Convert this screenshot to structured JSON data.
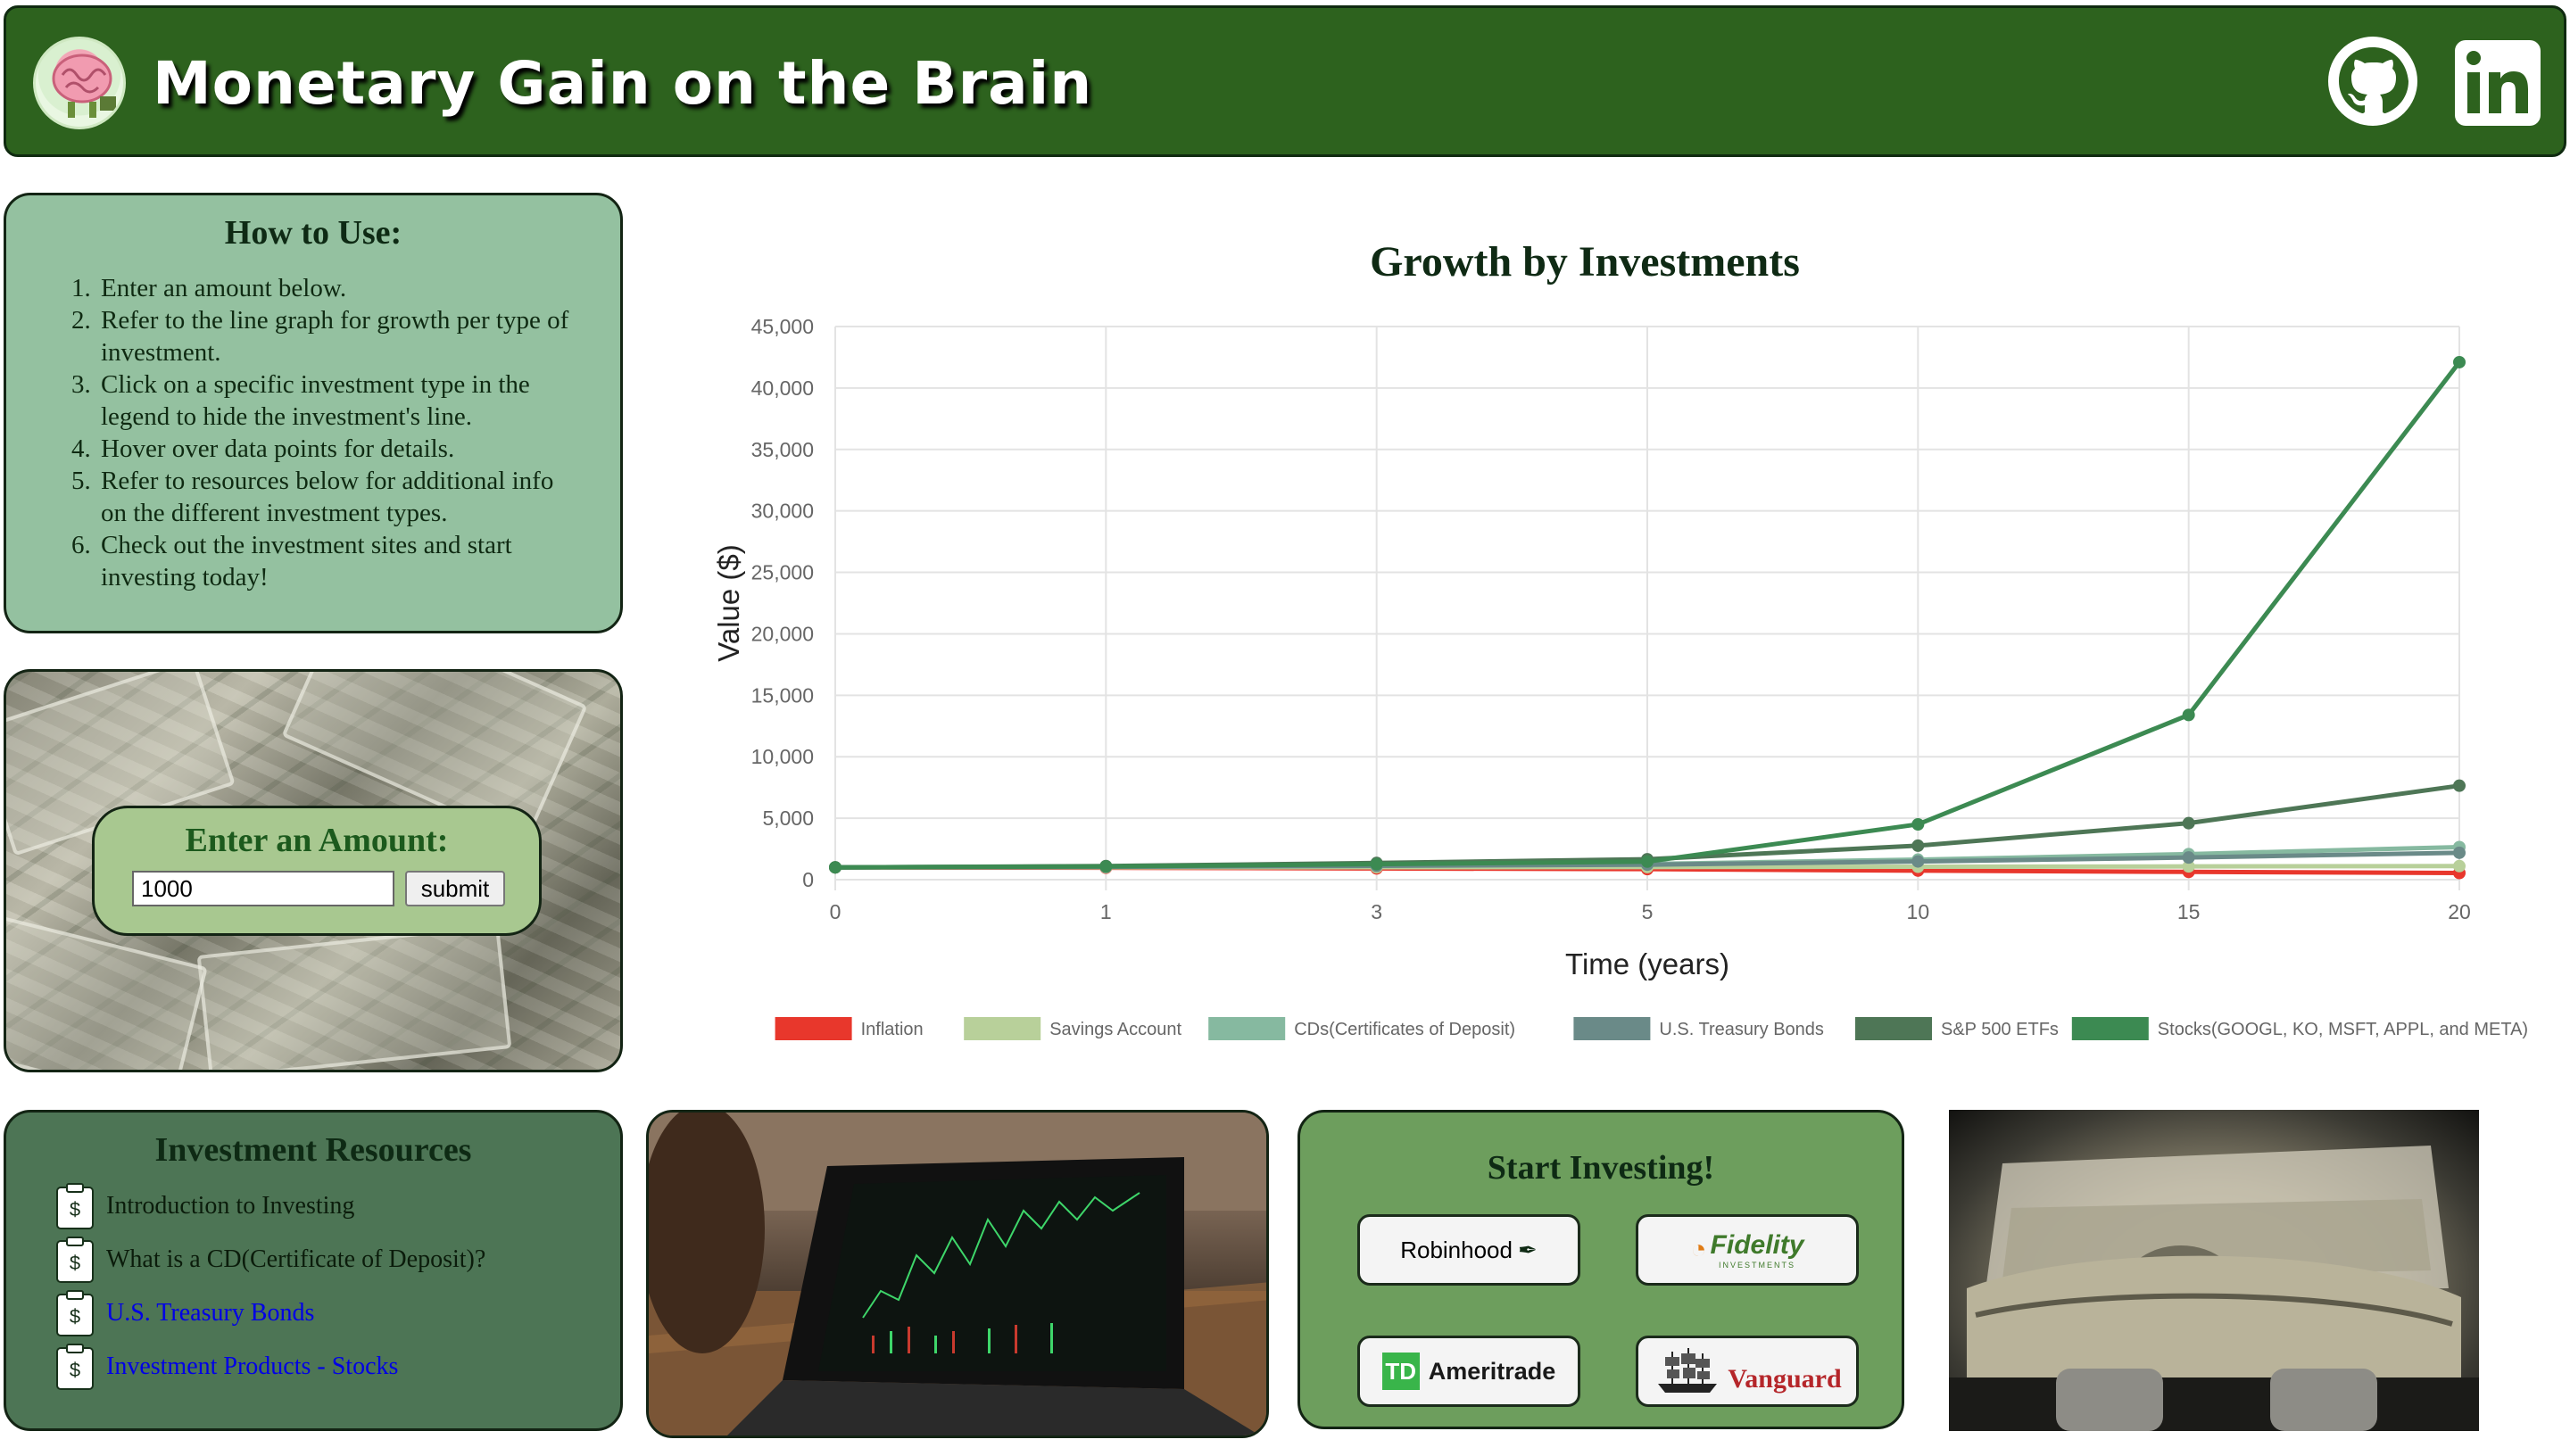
{
  "header": {
    "title": "Monetary Gain on the Brain",
    "github_icon": "github-icon",
    "linkedin_icon": "linkedin-icon"
  },
  "how_to": {
    "title": "How to Use:",
    "steps": [
      "Enter an amount below.",
      "Refer to the line graph for growth per type of investment.",
      "Click on a specific investment type in the legend to hide the investment's line.",
      "Hover over data points for details.",
      "Refer to resources below for additional info on the different investment types.",
      "Check out the investment sites and start investing today!"
    ]
  },
  "amount": {
    "title": "Enter an Amount:",
    "value": "1000",
    "submit_label": "submit"
  },
  "resources": {
    "title": "Investment Resources",
    "items": [
      {
        "label": "Introduction to Investing",
        "link": false
      },
      {
        "label": "What is a CD(Certificate of Deposit)?",
        "link": false
      },
      {
        "label": "U.S. Treasury Bonds",
        "link": true
      },
      {
        "label": "Investment Products - Stocks",
        "link": true
      }
    ]
  },
  "start_investing": {
    "title": "Start Investing!",
    "brokers": [
      "Robinhood",
      "Fidelity",
      "Ameritrade",
      "Vanguard"
    ],
    "fidelity_sub": "INVESTMENTS",
    "td_mark": "TD"
  },
  "colors": {
    "header_bg": "#2d621e",
    "inflation": "#e8372c",
    "savings": "#b8d09a",
    "cds": "#86b9a0",
    "treasury": "#6a8a88",
    "sp500": "#4e7656",
    "stocks": "#3c8a52"
  },
  "chart_data": {
    "type": "line",
    "title": "Growth by Investments",
    "xlabel": "Time (years)",
    "ylabel": "Value ($)",
    "categories": [
      "0",
      "1",
      "3",
      "5",
      "10",
      "15",
      "20"
    ],
    "ylim": [
      0,
      45000
    ],
    "yticks": [
      "0",
      "5,000",
      "10,000",
      "15,000",
      "20,000",
      "25,000",
      "30,000",
      "35,000",
      "40,000",
      "45,000"
    ],
    "grid": true,
    "legend": "bottom",
    "series": [
      {
        "name": "Inflation",
        "color": "#e8372c",
        "values": [
          1000,
          970,
          913,
          859,
          737,
          633,
          544
        ]
      },
      {
        "name": "Savings Account",
        "color": "#b8d09a",
        "values": [
          1000,
          1005,
          1015,
          1025,
          1051,
          1078,
          1105
        ]
      },
      {
        "name": "CDs(Certificates of Deposit)",
        "color": "#86b9a0",
        "values": [
          1000,
          1050,
          1158,
          1276,
          1629,
          2079,
          2653
        ]
      },
      {
        "name": "U.S. Treasury Bonds",
        "color": "#6a8a88",
        "values": [
          1000,
          1040,
          1125,
          1217,
          1480,
          1801,
          2191
        ]
      },
      {
        "name": "S&P 500 ETFs",
        "color": "#4e7656",
        "values": [
          1000,
          1107,
          1357,
          1663,
          2765,
          4597,
          7645
        ]
      },
      {
        "name": "Stocks(GOOGL, KO, MSFT, APPL, and META)",
        "color": "#3c8a52",
        "values": [
          1000,
          1080,
          1260,
          1469,
          4500,
          13400,
          42100
        ]
      }
    ]
  }
}
